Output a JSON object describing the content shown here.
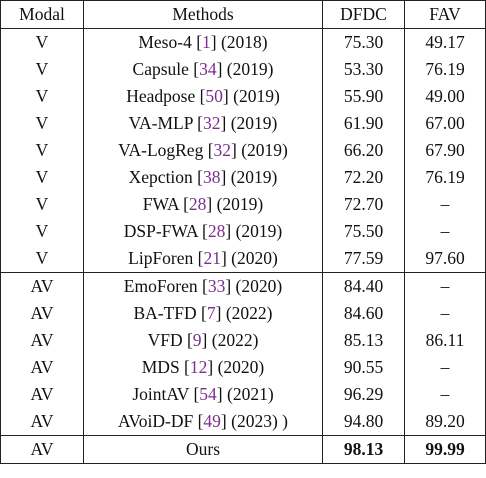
{
  "table": {
    "header": [
      "Modal",
      "Methods",
      "DFDC",
      "FAV"
    ],
    "rows": [
      {
        "modal": "V",
        "pre": "Meso-4 [",
        "ref": "1",
        "post": "] (2018)",
        "dfdc": "75.30",
        "fav": "49.17"
      },
      {
        "modal": "V",
        "pre": "Capsule [",
        "ref": "34",
        "post": "] (2019)",
        "dfdc": "53.30",
        "fav": "76.19"
      },
      {
        "modal": "V",
        "pre": "Headpose [",
        "ref": "50",
        "post": "] (2019)",
        "dfdc": "55.90",
        "fav": "49.00"
      },
      {
        "modal": "V",
        "pre": "VA-MLP [",
        "ref": "32",
        "post": "] (2019)",
        "dfdc": "61.90",
        "fav": "67.00"
      },
      {
        "modal": "V",
        "pre": "VA-LogReg [",
        "ref": "32",
        "post": "] (2019)",
        "dfdc": "66.20",
        "fav": "67.90"
      },
      {
        "modal": "V",
        "pre": "Xepction [",
        "ref": "38",
        "post": "] (2019)",
        "dfdc": "72.20",
        "fav": "76.19"
      },
      {
        "modal": "V",
        "pre": "FWA [",
        "ref": "28",
        "post": "] (2019)",
        "dfdc": "72.70",
        "fav": "–"
      },
      {
        "modal": "V",
        "pre": "DSP-FWA [",
        "ref": "28",
        "post": "] (2019)",
        "dfdc": "75.50",
        "fav": "–"
      },
      {
        "modal": "V",
        "pre": "LipForen [",
        "ref": "21",
        "post": "] (2020)",
        "dfdc": "77.59",
        "fav": "97.60"
      },
      {
        "modal": "AV",
        "pre": "EmoForen [",
        "ref": "33",
        "post": "] (2020)",
        "dfdc": "84.40",
        "fav": "–"
      },
      {
        "modal": "AV",
        "pre": "BA-TFD [",
        "ref": "7",
        "post": "] (2022)",
        "dfdc": "84.60",
        "fav": "–"
      },
      {
        "modal": "AV",
        "pre": "VFD [",
        "ref": "9",
        "post": "] (2022)",
        "dfdc": "85.13",
        "fav": "86.11"
      },
      {
        "modal": "AV",
        "pre": "MDS [",
        "ref": "12",
        "post": "] (2020)",
        "dfdc": "90.55",
        "fav": "–"
      },
      {
        "modal": "AV",
        "pre": "JointAV [",
        "ref": "54",
        "post": "] (2021)",
        "dfdc": "96.29",
        "fav": "–"
      },
      {
        "modal": "AV",
        "pre": "AVoiD-DF [",
        "ref": "49",
        "post": "] (2023) )",
        "dfdc": "94.80",
        "fav": "89.20"
      },
      {
        "modal": "AV",
        "pre": "Ours",
        "dfdc": "98.13",
        "fav": "99.99",
        "bold": true
      }
    ],
    "separators_before": [
      9,
      15
    ]
  }
}
